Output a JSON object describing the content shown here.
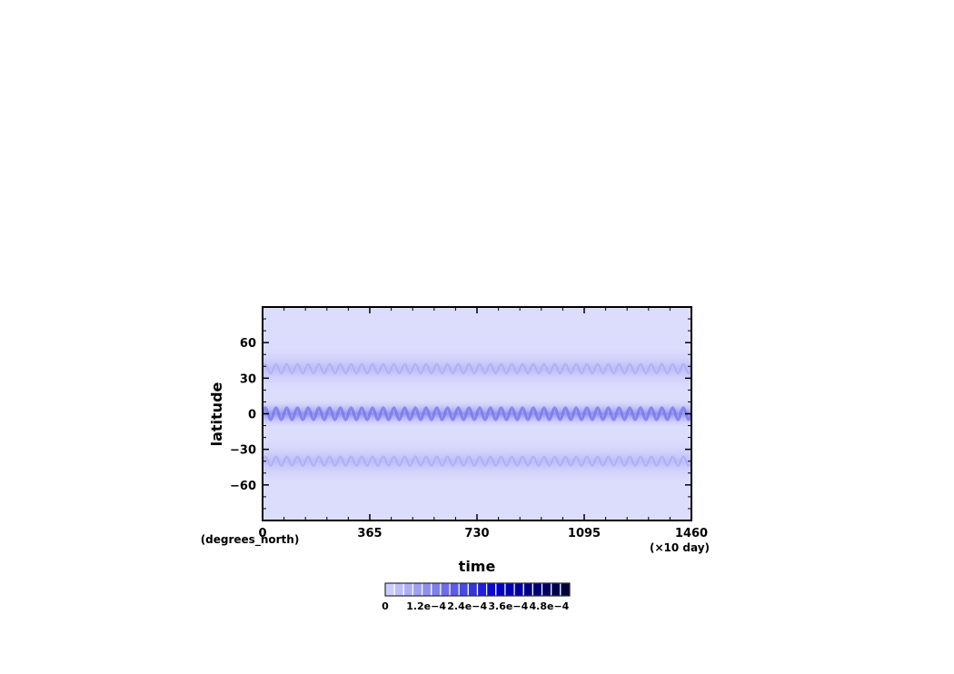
{
  "chart_data": {
    "type": "heatmap",
    "title": "",
    "xlabel": "time",
    "ylabel": "latitude",
    "x_units": "(×10 day)",
    "y_units": "(degrees_north)",
    "xlim": [
      0,
      1460
    ],
    "ylim": [
      -90,
      90
    ],
    "x_ticks": [
      0,
      365,
      730,
      1095,
      1460
    ],
    "x_tick_labels": [
      "0",
      "365",
      "730",
      "1095",
      "1460"
    ],
    "y_ticks": [
      60,
      30,
      0,
      -30,
      -60
    ],
    "y_tick_labels": [
      "60",
      "30",
      "0",
      "−30",
      "−60"
    ],
    "bands": [
      {
        "center_lat": 38,
        "half_width": 22,
        "mean_value": 4e-05
      },
      {
        "center_lat": 0,
        "half_width": 12,
        "mean_value": 8e-05
      },
      {
        "center_lat": -40,
        "half_width": 22,
        "mean_value": 4e-05
      }
    ],
    "background_value": 1e-05,
    "colorbar": {
      "min": 0,
      "max": 0.00054,
      "tick_values": [
        0,
        0.00012,
        0.00024,
        0.00036,
        0.00048
      ],
      "tick_labels": [
        "0",
        "1.2e−4",
        "2.4e−4",
        "3.6e−4",
        "4.8e−4"
      ],
      "colors": [
        "#ccccff",
        "#bdbdfa",
        "#aeaef7",
        "#9f9ff4",
        "#8f8ff0",
        "#7f7fed",
        "#6e6eea",
        "#5c5ce7",
        "#4949e4",
        "#3535e0",
        "#1f1fdc",
        "#0a0ad6",
        "#0000c8",
        "#0000b4",
        "#0000a0",
        "#00008c",
        "#000078",
        "#000064",
        "#000050",
        "#00003c"
      ]
    }
  }
}
